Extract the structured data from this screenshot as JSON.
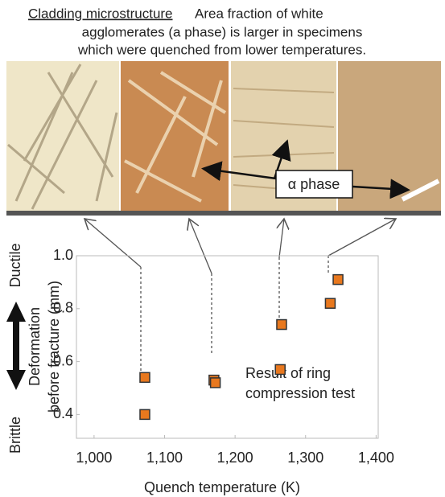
{
  "caption": {
    "heading": "Cladding microstructure",
    "lines": [
      "Area fraction of white",
      "agglomerates (a phase) is larger in specimens",
      "which were quenched from lower temperatures."
    ]
  },
  "phase_label": "α phase",
  "chart_data": {
    "type": "scatter",
    "xlabel": "Quench temperature (K)",
    "ylabel": [
      "Deformation",
      "before fracture (mm)"
    ],
    "ductile_label": "Ductile",
    "brittle_label": "Brittle",
    "annotation": [
      "Result of ring",
      "compression test"
    ],
    "x": [
      1072,
      1072,
      1170,
      1172,
      1264,
      1266,
      1335,
      1346
    ],
    "values": [
      0.4,
      0.54,
      0.53,
      0.52,
      0.57,
      0.74,
      0.82,
      0.91
    ],
    "color": "#e8781e",
    "xlim": [
      975,
      1403
    ],
    "ylim": [
      0.31,
      1.0
    ],
    "xticks": [
      {
        "value": 1000,
        "label": "1,000"
      },
      {
        "value": 1100,
        "label": "1,100"
      },
      {
        "value": 1200,
        "label": "1,200"
      },
      {
        "value": 1300,
        "label": "1,300"
      },
      {
        "value": 1400,
        "label": "1,400"
      }
    ],
    "yticks": [
      0.4,
      0.6,
      0.8,
      {
        "value": 1,
        "label": "1.0"
      }
    ],
    "grid": false
  }
}
